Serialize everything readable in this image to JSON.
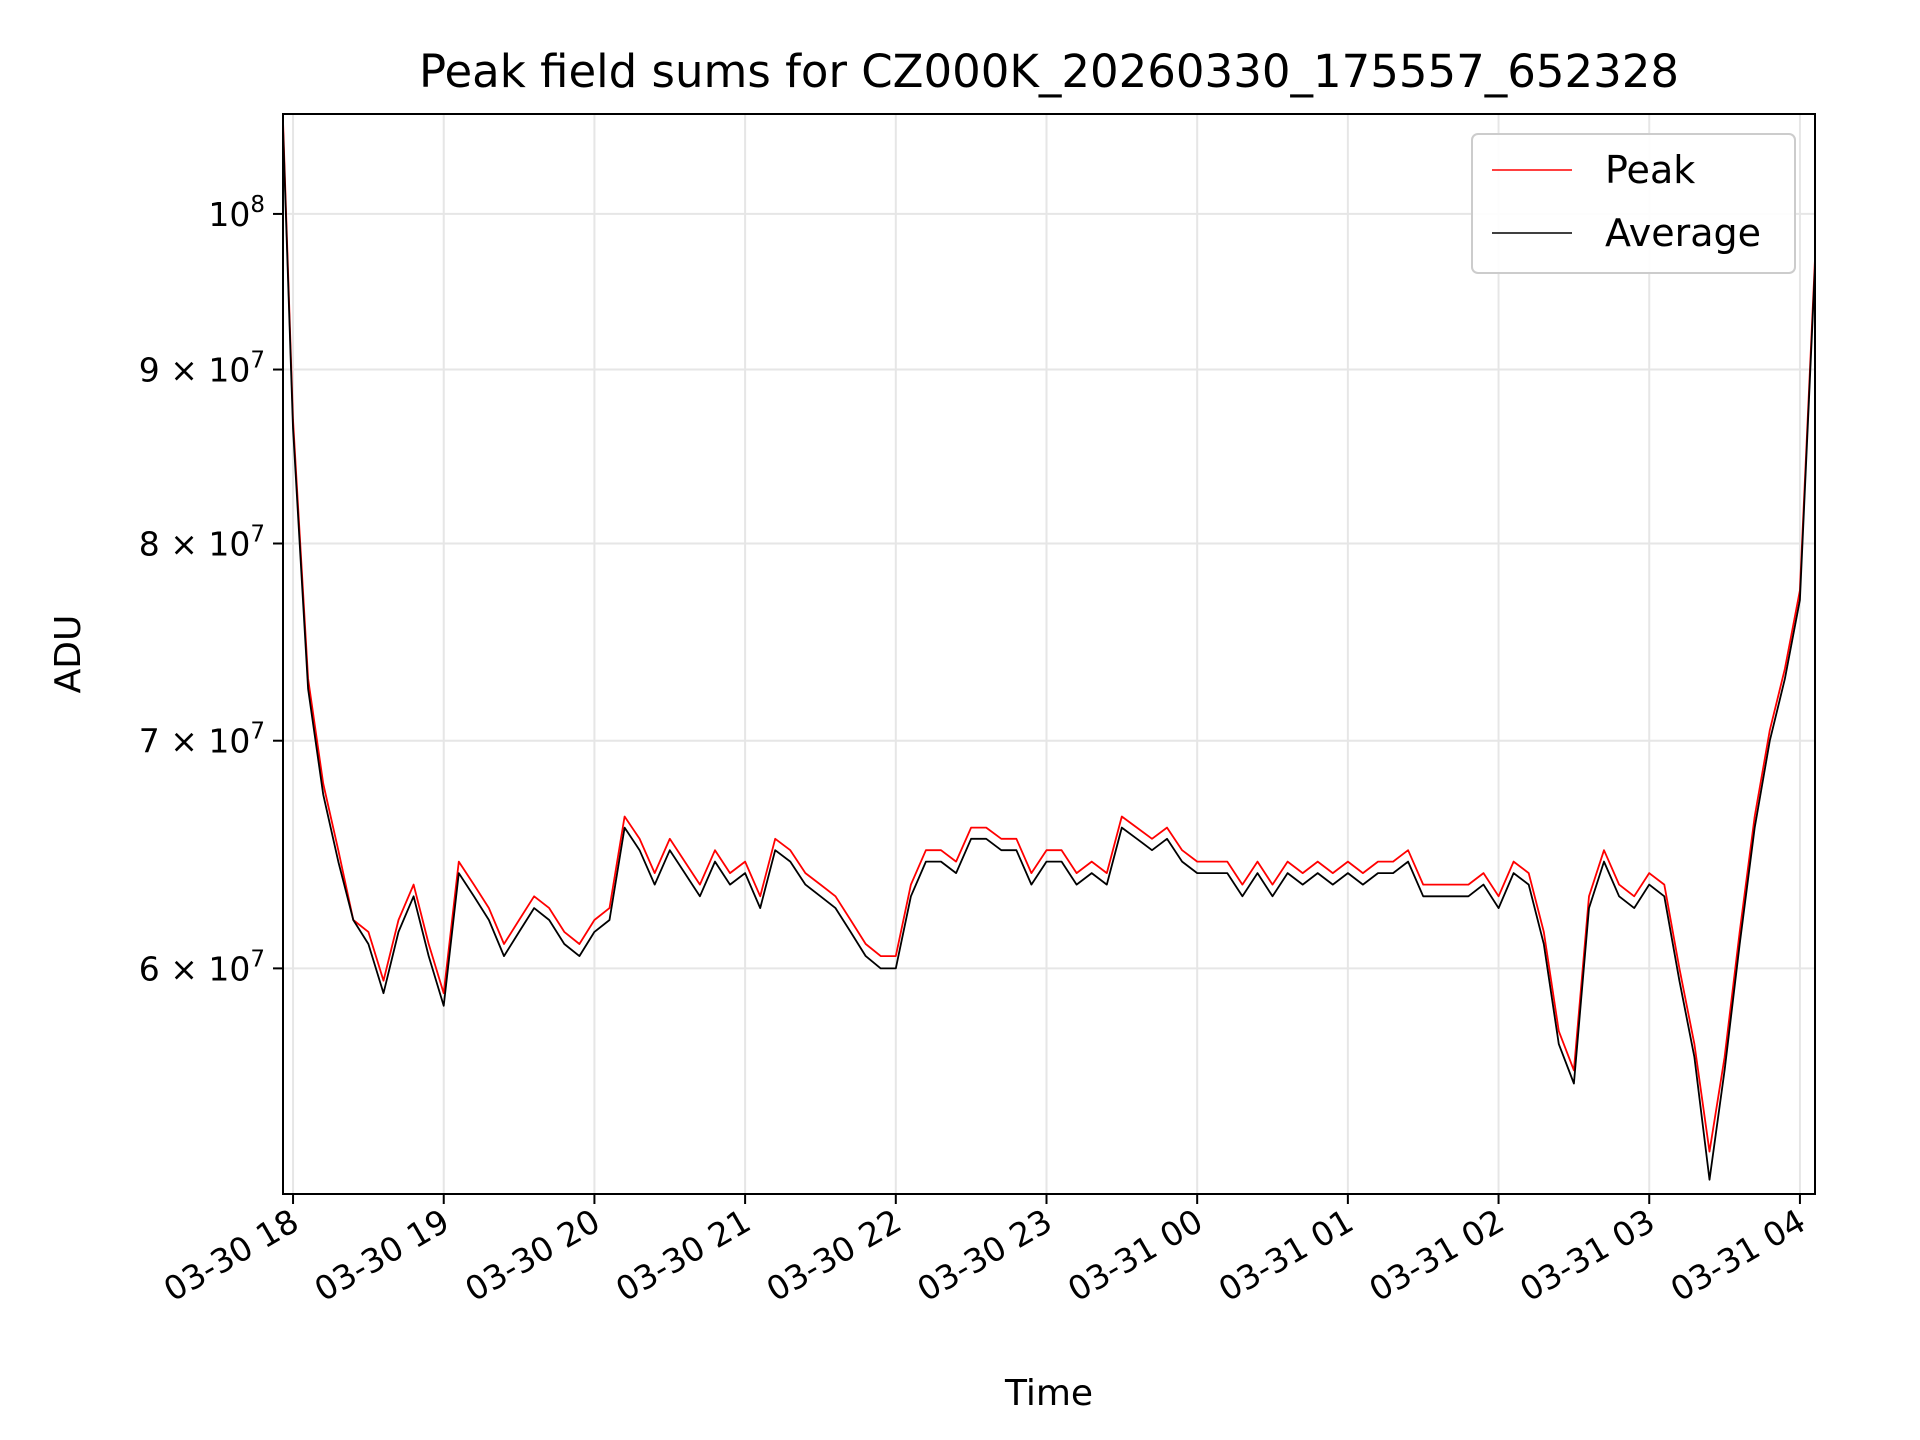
{
  "chart_data": {
    "type": "line",
    "title": "Peak field sums for CZ000K_20260330_175557_652328",
    "xlabel": "Time",
    "ylabel": "ADU",
    "x_range": [
      "2026-03-30 17:56",
      "2026-03-31 04:06"
    ],
    "y_scale": "log",
    "ylim": [
      51500000,
      107000000
    ],
    "grid": true,
    "legend_position": "top-right",
    "x_ticks": [
      "03-30 18",
      "03-30 19",
      "03-30 20",
      "03-30 21",
      "03-30 22",
      "03-30 23",
      "03-31 00",
      "03-31 01",
      "03-31 02",
      "03-31 03",
      "03-31 04"
    ],
    "x_tick_times": [
      "2026-03-30 18:00",
      "2026-03-30 19:00",
      "2026-03-30 20:00",
      "2026-03-30 21:00",
      "2026-03-30 22:00",
      "2026-03-30 23:00",
      "2026-03-31 00:00",
      "2026-03-31 01:00",
      "2026-03-31 02:00",
      "2026-03-31 03:00",
      "2026-03-31 04:00"
    ],
    "y_ticks": [
      {
        "value": 100000000,
        "base": "10",
        "exp": "8"
      },
      {
        "value": 90000000,
        "base": "9 × 10",
        "exp": "7"
      },
      {
        "value": 80000000,
        "base": "8 × 10",
        "exp": "7"
      },
      {
        "value": 70000000,
        "base": "7 × 10",
        "exp": "7"
      },
      {
        "value": 60000000,
        "base": "6 × 10",
        "exp": "7"
      }
    ],
    "x": [
      "2026-03-30 17:56",
      "2026-03-30 18:00",
      "2026-03-30 18:06",
      "2026-03-30 18:12",
      "2026-03-30 18:18",
      "2026-03-30 18:24",
      "2026-03-30 18:30",
      "2026-03-30 18:36",
      "2026-03-30 18:42",
      "2026-03-30 18:48",
      "2026-03-30 18:54",
      "2026-03-30 19:00",
      "2026-03-30 19:06",
      "2026-03-30 19:12",
      "2026-03-30 19:18",
      "2026-03-30 19:24",
      "2026-03-30 19:30",
      "2026-03-30 19:36",
      "2026-03-30 19:42",
      "2026-03-30 19:48",
      "2026-03-30 19:54",
      "2026-03-30 20:00",
      "2026-03-30 20:06",
      "2026-03-30 20:12",
      "2026-03-30 20:18",
      "2026-03-30 20:24",
      "2026-03-30 20:30",
      "2026-03-30 20:36",
      "2026-03-30 20:42",
      "2026-03-30 20:48",
      "2026-03-30 20:54",
      "2026-03-30 21:00",
      "2026-03-30 21:06",
      "2026-03-30 21:12",
      "2026-03-30 21:18",
      "2026-03-30 21:24",
      "2026-03-30 21:30",
      "2026-03-30 21:36",
      "2026-03-30 21:42",
      "2026-03-30 21:48",
      "2026-03-30 21:54",
      "2026-03-30 22:00",
      "2026-03-30 22:06",
      "2026-03-30 22:12",
      "2026-03-30 22:18",
      "2026-03-30 22:24",
      "2026-03-30 22:30",
      "2026-03-30 22:36",
      "2026-03-30 22:42",
      "2026-03-30 22:48",
      "2026-03-30 22:54",
      "2026-03-30 23:00",
      "2026-03-30 23:06",
      "2026-03-30 23:12",
      "2026-03-30 23:18",
      "2026-03-30 23:24",
      "2026-03-30 23:30",
      "2026-03-30 23:36",
      "2026-03-30 23:42",
      "2026-03-30 23:48",
      "2026-03-30 23:54",
      "2026-03-31 00:00",
      "2026-03-31 00:06",
      "2026-03-31 00:12",
      "2026-03-31 00:18",
      "2026-03-31 00:24",
      "2026-03-31 00:30",
      "2026-03-31 00:36",
      "2026-03-31 00:42",
      "2026-03-31 00:48",
      "2026-03-31 00:54",
      "2026-03-31 01:00",
      "2026-03-31 01:06",
      "2026-03-31 01:12",
      "2026-03-31 01:18",
      "2026-03-31 01:24",
      "2026-03-31 01:30",
      "2026-03-31 01:36",
      "2026-03-31 01:42",
      "2026-03-31 01:48",
      "2026-03-31 01:54",
      "2026-03-31 02:00",
      "2026-03-31 02:06",
      "2026-03-31 02:12",
      "2026-03-31 02:18",
      "2026-03-31 02:24",
      "2026-03-31 02:30",
      "2026-03-31 02:36",
      "2026-03-31 02:42",
      "2026-03-31 02:48",
      "2026-03-31 02:54",
      "2026-03-31 03:00",
      "2026-03-31 03:06",
      "2026-03-31 03:12",
      "2026-03-31 03:18",
      "2026-03-31 03:24",
      "2026-03-31 03:30",
      "2026-03-31 03:36",
      "2026-03-31 03:42",
      "2026-03-31 03:48",
      "2026-03-31 03:54",
      "2026-03-31 04:00",
      "2026-03-31 04:06"
    ],
    "series": [
      {
        "name": "Peak",
        "color": "#ff0000",
        "values": [
          106500000,
          87000000,
          73000000,
          68000000,
          65000000,
          62000000,
          61500000,
          59500000,
          62000000,
          63500000,
          61000000,
          59000000,
          64500000,
          63500000,
          62500000,
          61000000,
          62000000,
          63000000,
          62500000,
          61500000,
          61000000,
          62000000,
          62500000,
          66500000,
          65500000,
          64000000,
          65500000,
          64500000,
          63500000,
          65000000,
          64000000,
          64500000,
          63000000,
          65500000,
          65000000,
          64000000,
          63500000,
          63000000,
          62000000,
          61000000,
          60500000,
          60500000,
          63500000,
          65000000,
          65000000,
          64500000,
          66000000,
          66000000,
          65500000,
          65500000,
          64000000,
          65000000,
          65000000,
          64000000,
          64500000,
          64000000,
          66500000,
          66000000,
          65500000,
          66000000,
          65000000,
          64500000,
          64500000,
          64500000,
          63500000,
          64500000,
          63500000,
          64500000,
          64000000,
          64500000,
          64000000,
          64500000,
          64000000,
          64500000,
          64500000,
          65000000,
          63500000,
          63500000,
          63500000,
          63500000,
          64000000,
          63000000,
          64500000,
          64000000,
          61500000,
          57500000,
          56000000,
          63000000,
          65000000,
          63500000,
          63000000,
          64000000,
          63500000,
          60000000,
          57000000,
          53000000,
          56500000,
          61500000,
          66500000,
          70500000,
          73500000,
          77500000,
          97000000
        ]
      },
      {
        "name": "Average",
        "color": "#000000",
        "values": [
          106000000,
          86500000,
          72500000,
          67500000,
          64500000,
          62000000,
          61000000,
          59000000,
          61500000,
          63000000,
          60500000,
          58500000,
          64000000,
          63000000,
          62000000,
          60500000,
          61500000,
          62500000,
          62000000,
          61000000,
          60500000,
          61500000,
          62000000,
          66000000,
          65000000,
          63500000,
          65000000,
          64000000,
          63000000,
          64500000,
          63500000,
          64000000,
          62500000,
          65000000,
          64500000,
          63500000,
          63000000,
          62500000,
          61500000,
          60500000,
          60000000,
          60000000,
          63000000,
          64500000,
          64500000,
          64000000,
          65500000,
          65500000,
          65000000,
          65000000,
          63500000,
          64500000,
          64500000,
          63500000,
          64000000,
          63500000,
          66000000,
          65500000,
          65000000,
          65500000,
          64500000,
          64000000,
          64000000,
          64000000,
          63000000,
          64000000,
          63000000,
          64000000,
          63500000,
          64000000,
          63500000,
          64000000,
          63500000,
          64000000,
          64000000,
          64500000,
          63000000,
          63000000,
          63000000,
          63000000,
          63500000,
          62500000,
          64000000,
          63500000,
          61000000,
          57000000,
          55500000,
          62500000,
          64500000,
          63000000,
          62500000,
          63500000,
          63000000,
          59500000,
          56500000,
          52000000,
          56000000,
          61000000,
          66000000,
          70000000,
          73000000,
          77000000,
          96500000
        ]
      }
    ]
  }
}
